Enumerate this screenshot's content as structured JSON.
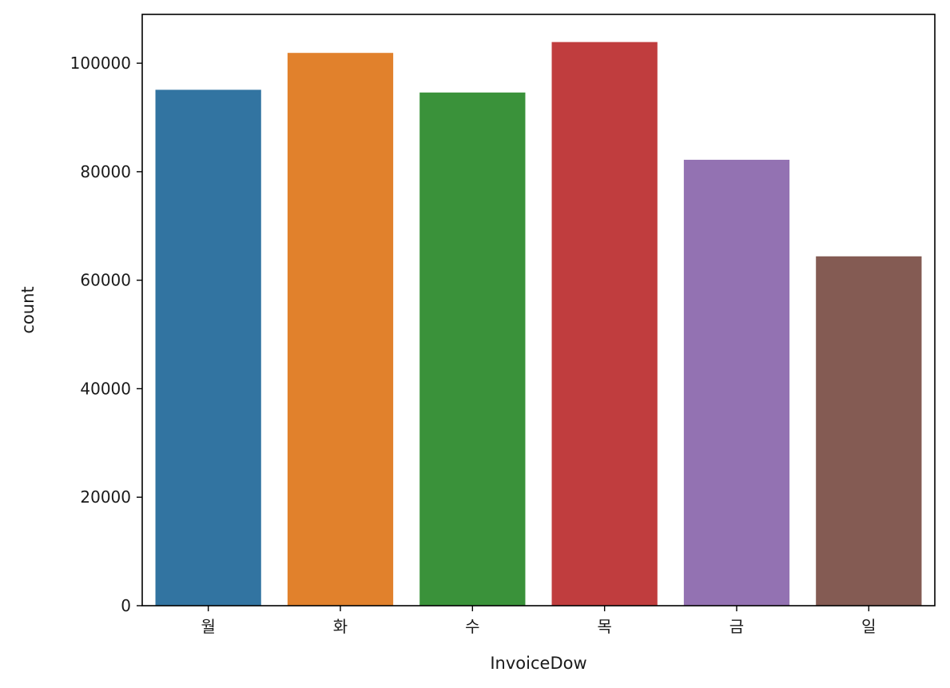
{
  "chart_data": {
    "type": "bar",
    "title": "",
    "xlabel": "InvoiceDow",
    "ylabel": "count",
    "categories": [
      "월",
      "화",
      "수",
      "목",
      "금",
      "일"
    ],
    "values": [
      95100,
      101900,
      94600,
      103900,
      82200,
      64400
    ],
    "colors": [
      "#3274a1",
      "#e1812c",
      "#3a923a",
      "#c03d3e",
      "#9372b2",
      "#845b53"
    ],
    "ylim": [
      0,
      109000
    ],
    "yticks": [
      0,
      20000,
      40000,
      60000,
      80000,
      100000
    ],
    "grid": false,
    "legend": "none"
  }
}
